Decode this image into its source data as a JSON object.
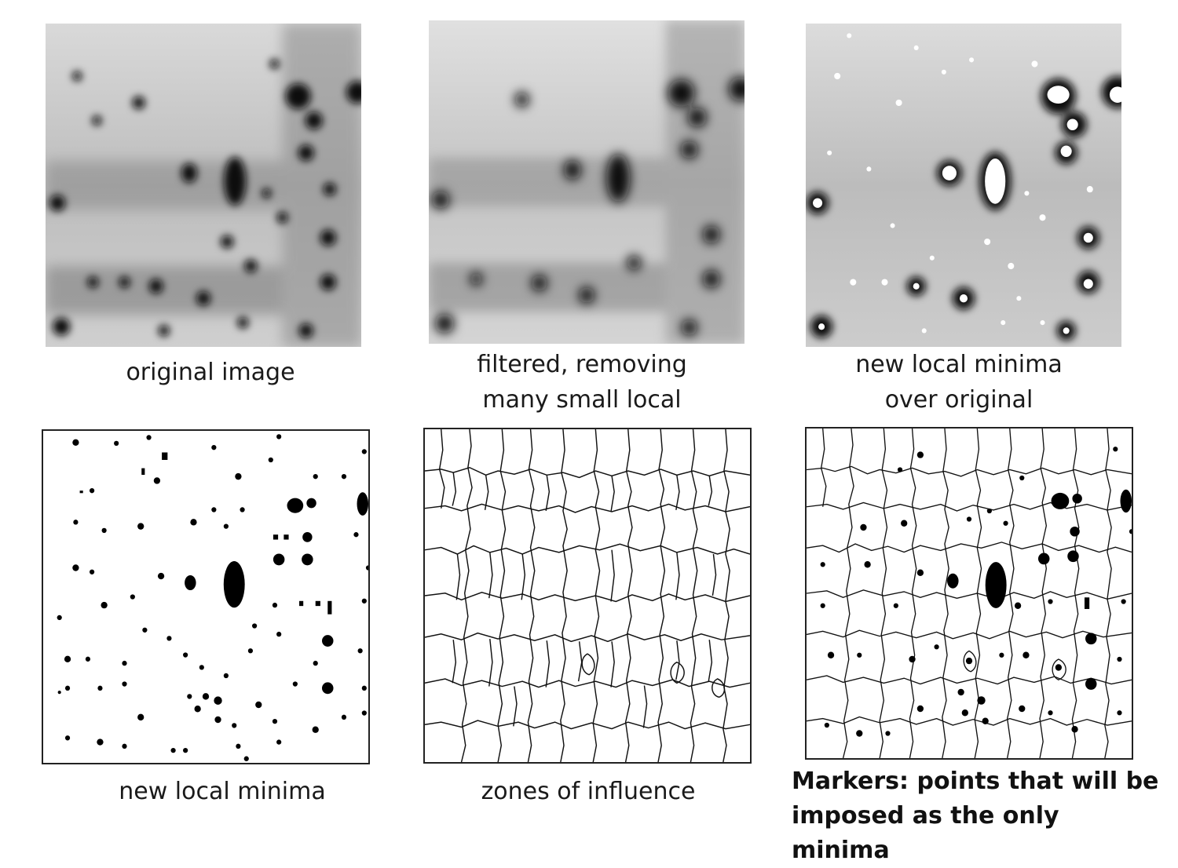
{
  "figure": {
    "panels": [
      {
        "id": "original",
        "caption": [
          "original image"
        ]
      },
      {
        "id": "filtered",
        "caption": [
          "filtered, removing",
          "many small local"
        ]
      },
      {
        "id": "minima-over",
        "caption": [
          "new local minima",
          "over original"
        ]
      },
      {
        "id": "minima",
        "caption": [
          "new local minima"
        ]
      },
      {
        "id": "zones",
        "caption": [
          "zones of influence"
        ]
      },
      {
        "id": "markers",
        "caption": [
          "Markers: points that will be",
          "imposed as the only minima"
        ]
      }
    ]
  }
}
